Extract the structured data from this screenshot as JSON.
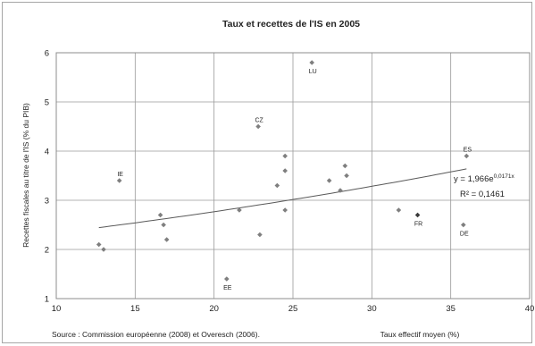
{
  "chart_data": {
    "type": "scatter",
    "title": "Taux et recettes de l'IS en 2005",
    "xlabel": "Taux effectif moyen (%)",
    "ylabel": "Recettes fiscales au titre de l'IS (% du PIB)",
    "xlim": [
      10,
      40
    ],
    "ylim": [
      1,
      6
    ],
    "x_ticks": [
      "10",
      "15",
      "20",
      "25",
      "30",
      "35",
      "40"
    ],
    "y_ticks": [
      "1",
      "2",
      "3",
      "4",
      "5",
      "6"
    ],
    "grid": true,
    "points": [
      {
        "x": 12.7,
        "y": 2.1,
        "label": ""
      },
      {
        "x": 13.0,
        "y": 2.0,
        "label": ""
      },
      {
        "x": 14.0,
        "y": 3.4,
        "label": "IE"
      },
      {
        "x": 16.6,
        "y": 2.7,
        "label": ""
      },
      {
        "x": 16.8,
        "y": 2.5,
        "label": ""
      },
      {
        "x": 17.0,
        "y": 2.2,
        "label": ""
      },
      {
        "x": 20.8,
        "y": 1.4,
        "label": "EE"
      },
      {
        "x": 21.6,
        "y": 2.8,
        "label": ""
      },
      {
        "x": 22.8,
        "y": 4.5,
        "label": "CZ"
      },
      {
        "x": 22.9,
        "y": 2.3,
        "label": ""
      },
      {
        "x": 24.0,
        "y": 3.3,
        "label": ""
      },
      {
        "x": 24.5,
        "y": 3.9,
        "label": ""
      },
      {
        "x": 24.5,
        "y": 3.6,
        "label": ""
      },
      {
        "x": 24.5,
        "y": 2.8,
        "label": ""
      },
      {
        "x": 26.2,
        "y": 5.8,
        "label": "LU"
      },
      {
        "x": 27.3,
        "y": 3.4,
        "label": ""
      },
      {
        "x": 28.0,
        "y": 3.2,
        "label": ""
      },
      {
        "x": 28.3,
        "y": 3.7,
        "label": ""
      },
      {
        "x": 28.4,
        "y": 3.5,
        "label": ""
      },
      {
        "x": 31.7,
        "y": 2.8,
        "label": ""
      },
      {
        "x": 32.9,
        "y": 2.7,
        "label": "FR",
        "highlight": true
      },
      {
        "x": 35.8,
        "y": 2.5,
        "label": "DE"
      },
      {
        "x": 36.0,
        "y": 3.9,
        "label": "ES"
      }
    ],
    "trendline": {
      "type": "exponential",
      "a": 1.966,
      "b": 0.0171
    },
    "equation": "y = 1,966e",
    "equation_exp": "0,0171x",
    "r2": "R² = 0,1461",
    "source": "Source : Commission européenne (2008) et Overesch (2006).",
    "colors": {
      "point": "#7f7f7f",
      "highlight": "#3a3a3a",
      "grid": "#9a9a9a",
      "trend": "#595959"
    }
  }
}
